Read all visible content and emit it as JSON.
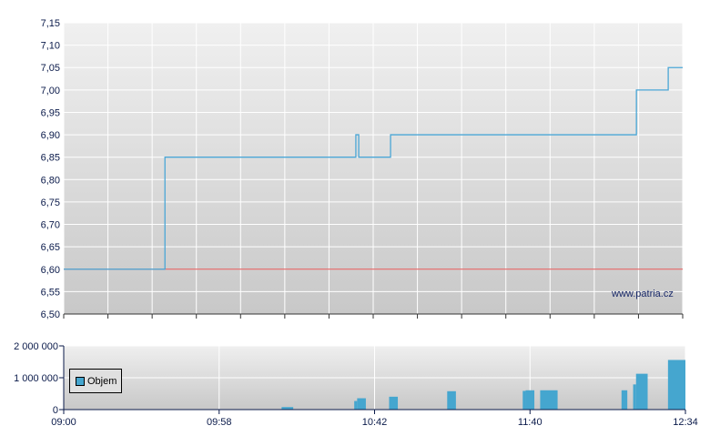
{
  "chart_data": [
    {
      "type": "line",
      "step": true,
      "x_range": [
        "09:00",
        "12:34"
      ],
      "ylim": [
        6.5,
        7.15
      ],
      "yticks": [
        "6,50",
        "6,55",
        "6,60",
        "6,65",
        "6,70",
        "6,75",
        "6,80",
        "6,85",
        "6,90",
        "6,95",
        "7,00",
        "7,05",
        "7,10",
        "7,15"
      ],
      "grid": true,
      "series": [
        {
          "color": "#4aa6d6",
          "points": [
            [
              "09:00",
              6.6
            ],
            [
              "09:35",
              6.85
            ],
            [
              "10:41",
              6.9
            ],
            [
              "10:42",
              6.85
            ],
            [
              "10:53",
              6.9
            ],
            [
              "12:18",
              7.0
            ],
            [
              "12:29",
              7.05
            ],
            [
              "12:34",
              7.05
            ]
          ]
        }
      ],
      "reference_line": {
        "value": 6.6,
        "color": "#e05050"
      },
      "watermark": "www.patria.cz"
    },
    {
      "type": "bar",
      "xticks": [
        "09:00",
        "09:58",
        "10:42",
        "11:40",
        "12:34"
      ],
      "yticks": [
        "0",
        "1 000 000",
        "2 000 000"
      ],
      "ylim": [
        0,
        2000000
      ],
      "grid": true,
      "legend": {
        "label": "Objem",
        "position": "left"
      },
      "color": "#45a6cf",
      "bars": [
        {
          "from": "10:15",
          "to": "10:19",
          "value": 80000
        },
        {
          "from": "10:40",
          "to": "10:41",
          "value": 270000
        },
        {
          "from": "10:41",
          "to": "10:44",
          "value": 356000
        },
        {
          "from": "10:52",
          "to": "10:55",
          "value": 404000
        },
        {
          "from": "11:12",
          "to": "11:15",
          "value": 577000
        },
        {
          "from": "11:38",
          "to": "11:39",
          "value": 587000
        },
        {
          "from": "11:39",
          "to": "11:42",
          "value": 606000
        },
        {
          "from": "11:44",
          "to": "11:50",
          "value": 606000
        },
        {
          "from": "12:12",
          "to": "12:14",
          "value": 606000
        },
        {
          "from": "12:16",
          "to": "12:17",
          "value": 790000
        },
        {
          "from": "12:17",
          "to": "12:21",
          "value": 1125000
        },
        {
          "from": "12:28",
          "to": "12:34",
          "value": 1558000
        }
      ]
    }
  ]
}
